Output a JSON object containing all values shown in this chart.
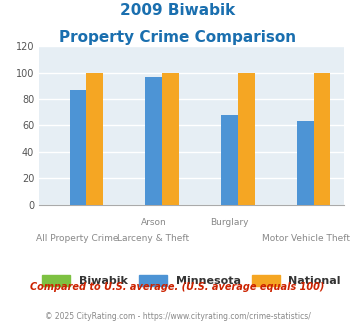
{
  "title_line1": "2009 Biwabik",
  "title_line2": "Property Crime Comparison",
  "title_color": "#1a6faf",
  "x_labels_top": [
    "",
    "Arson",
    "Burglary",
    ""
  ],
  "x_labels_bottom": [
    "All Property Crime",
    "Larceny & Theft",
    "",
    "Motor Vehicle Theft"
  ],
  "groups": [
    {
      "label": "All Property Crime",
      "biwabik": 0,
      "minnesota": 87,
      "national": 100
    },
    {
      "label": "Arson / Larceny & Theft",
      "biwabik": 0,
      "minnesota": 97,
      "national": 100
    },
    {
      "label": "Burglary",
      "biwabik": 0,
      "minnesota": 68,
      "national": 100
    },
    {
      "label": "Motor Vehicle Theft",
      "biwabik": 0,
      "minnesota": 63,
      "national": 100
    }
  ],
  "bar_colors": {
    "biwabik": "#7dc142",
    "minnesota": "#4d94d5",
    "national": "#f5a623"
  },
  "ylim": [
    0,
    120
  ],
  "yticks": [
    0,
    20,
    40,
    60,
    80,
    100,
    120
  ],
  "bg_color": "#e6eef4",
  "grid_color": "#ffffff",
  "legend_labels": [
    "Biwabik",
    "Minnesota",
    "National"
  ],
  "footnote1": "Compared to U.S. average. (U.S. average equals 100)",
  "footnote2_prefix": "© 2025 CityRating.com - ",
  "footnote2_link": "https://www.cityrating.com/crime-statistics/",
  "footnote1_color": "#cc2200",
  "footnote2_prefix_color": "#888888",
  "footnote2_link_color": "#4488cc"
}
